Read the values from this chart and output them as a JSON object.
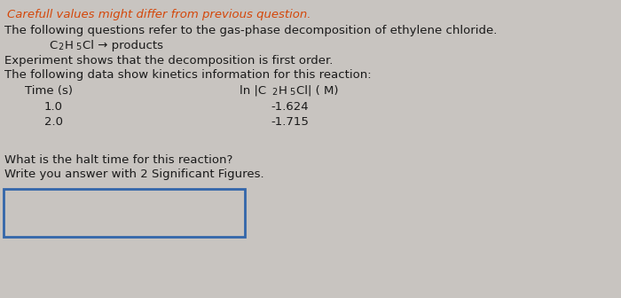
{
  "warning_text": "Carefull values might differ from previous question.",
  "warning_color": "#d4470a",
  "line1": "The following questions refer to the gas-phase decomposition of ethylene chloride.",
  "line3": "Experiment shows that the decomposition is first order.",
  "line4": "The following data show kinetics information for this reaction:",
  "col1_header": "Time (s)",
  "data_time": [
    "1.0",
    "2.0"
  ],
  "data_ln": [
    "-1.624",
    "-1.715"
  ],
  "question1": "What is the halt time for this reaction?",
  "question2": "Write you answer with 2 Significant Figures.",
  "bg_color": "#c8c4c0",
  "text_color": "#1a1a1a",
  "box_border_color": "#3366aa",
  "font_size": 9.5,
  "sub_font_size": 7.0
}
